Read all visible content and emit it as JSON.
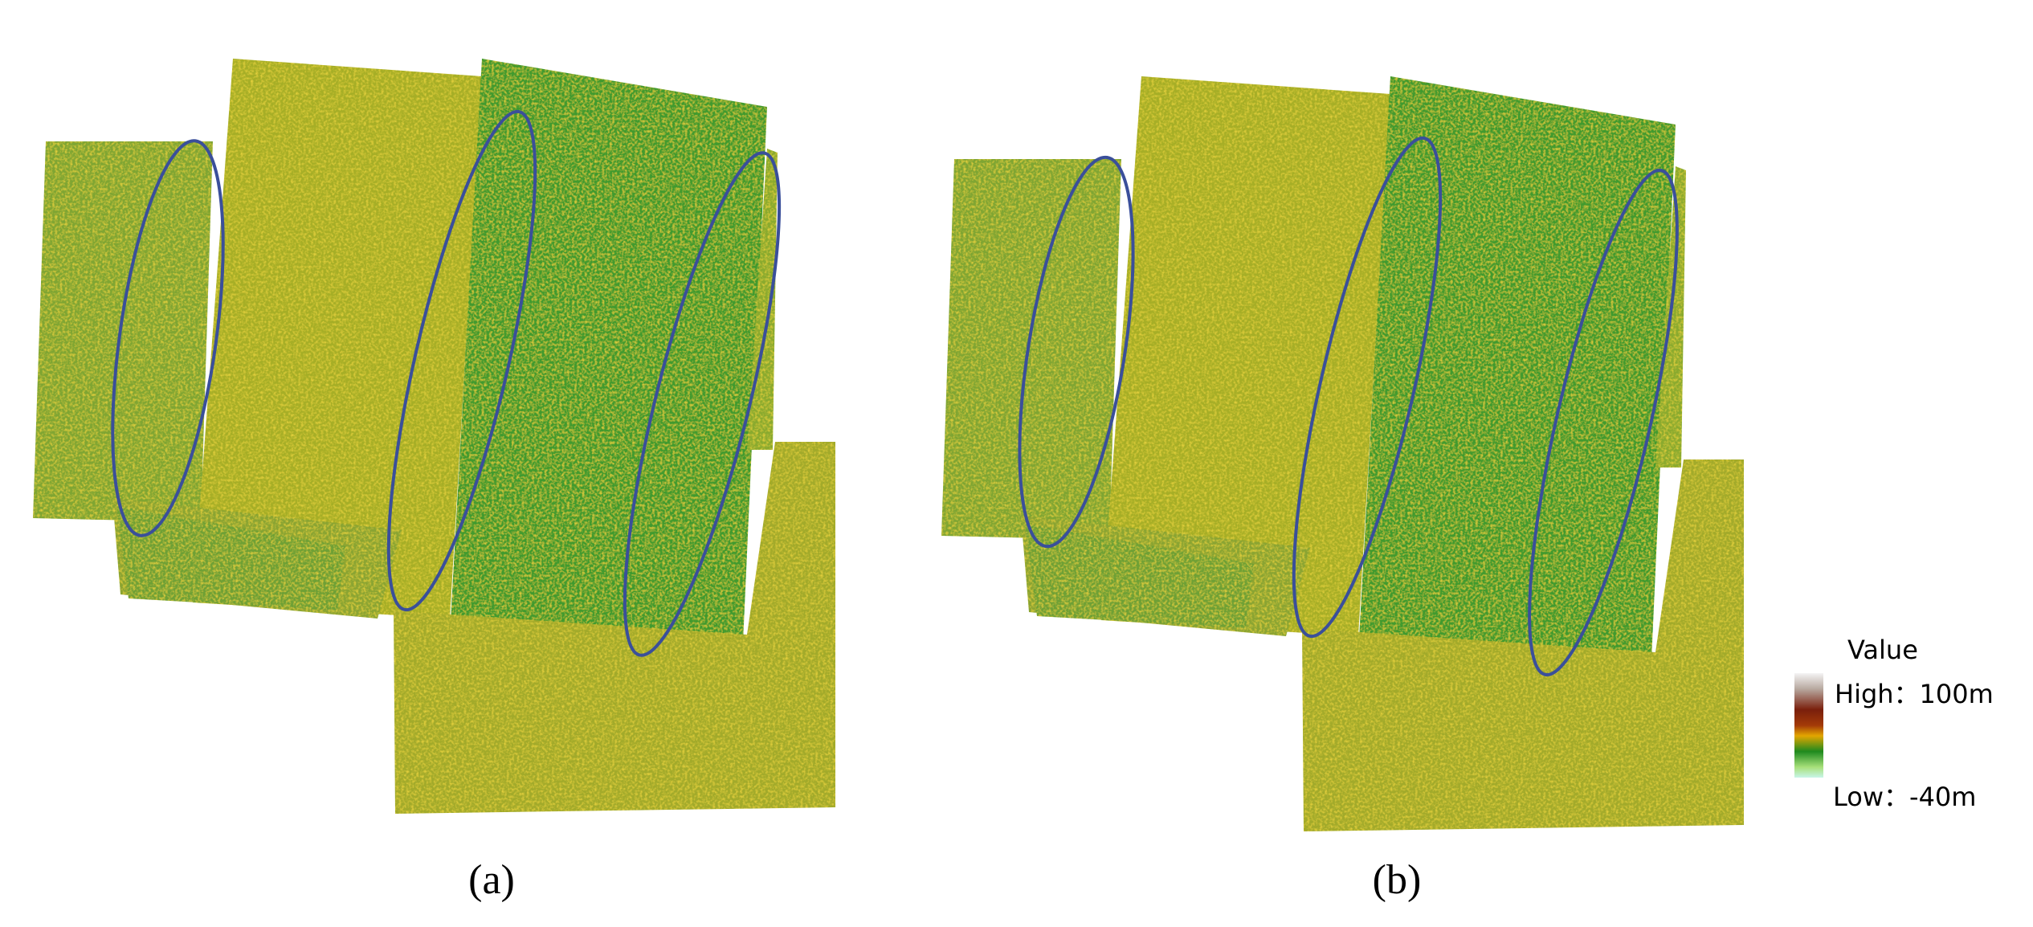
{
  "panels": [
    {
      "label": "(a)"
    },
    {
      "label": "(b)"
    }
  ],
  "legend": {
    "title": "Value",
    "high": "High：100m",
    "low": "Low：-40m"
  }
}
